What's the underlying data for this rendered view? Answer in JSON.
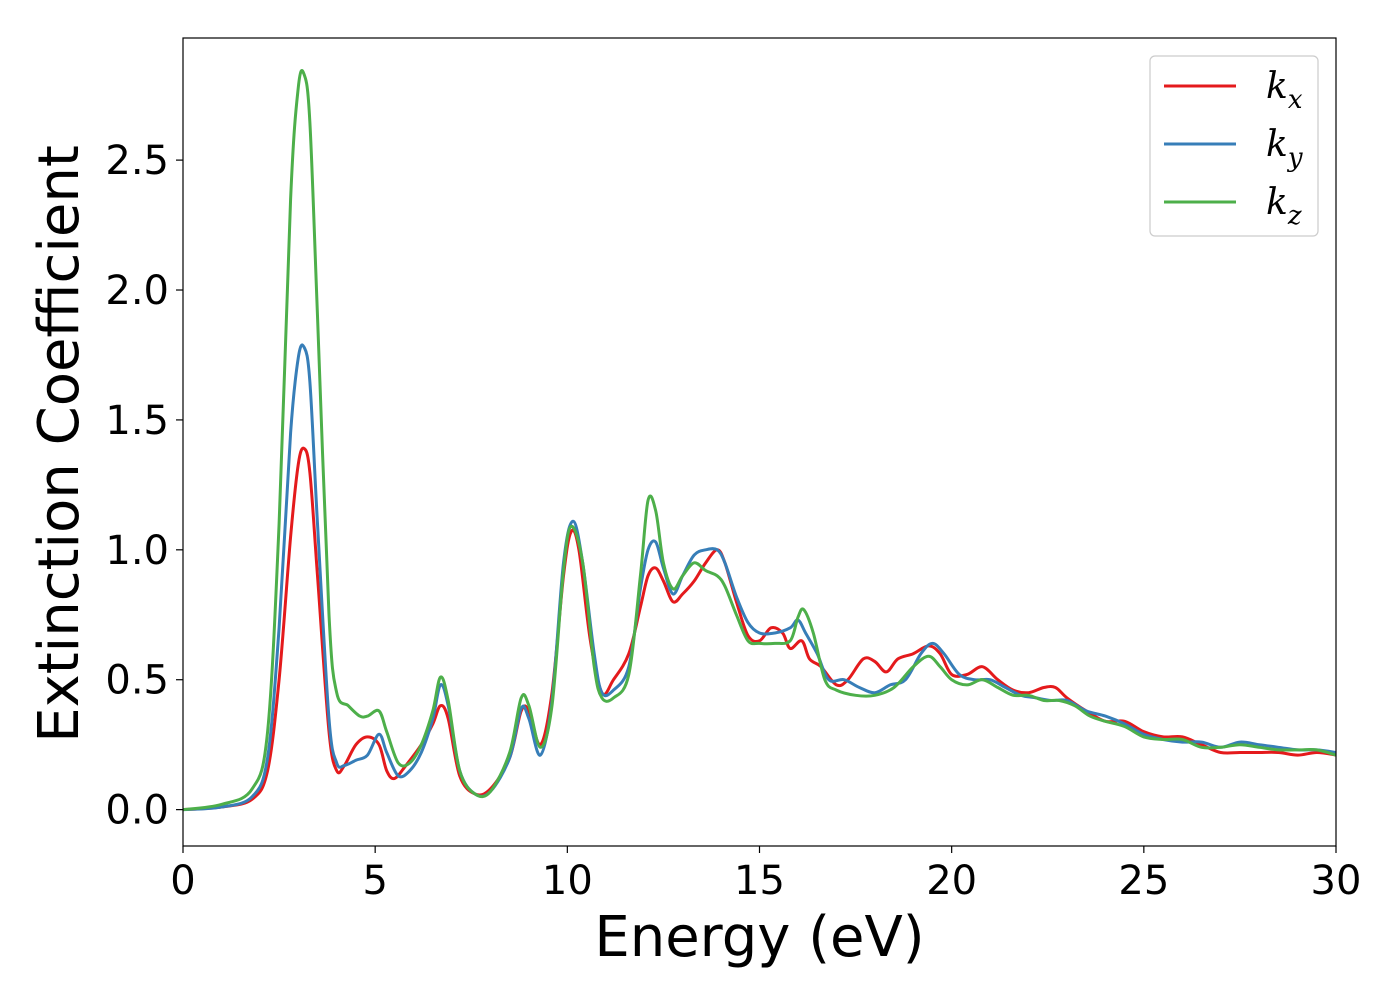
{
  "chart_data": {
    "type": "line",
    "title": "",
    "xlabel": "Energy (eV)",
    "ylabel": "Extinction Coefficient",
    "xlim": [
      0,
      30
    ],
    "ylim": [
      -0.14,
      2.97
    ],
    "xticks": [
      0,
      5,
      10,
      15,
      20,
      25,
      30
    ],
    "xtick_labels": [
      "0",
      "5",
      "10",
      "15",
      "20",
      "25",
      "30"
    ],
    "yticks": [
      0.0,
      0.5,
      1.0,
      1.5,
      2.0,
      2.5
    ],
    "ytick_labels": [
      "0.0",
      "0.5",
      "1.0",
      "1.5",
      "2.0",
      "2.5"
    ],
    "grid": false,
    "legend_position": "top-right",
    "series": [
      {
        "name": "k_x",
        "legend_base": "k",
        "legend_sub": "x",
        "color": "#e41a1c",
        "points": [
          [
            0,
            0
          ],
          [
            1,
            0.01
          ],
          [
            1.8,
            0.04
          ],
          [
            2.2,
            0.15
          ],
          [
            2.5,
            0.5
          ],
          [
            2.8,
            1.05
          ],
          [
            3.0,
            1.33
          ],
          [
            3.15,
            1.39
          ],
          [
            3.3,
            1.3
          ],
          [
            3.5,
            0.9
          ],
          [
            3.8,
            0.3
          ],
          [
            4.0,
            0.15
          ],
          [
            4.2,
            0.17
          ],
          [
            4.5,
            0.25
          ],
          [
            4.8,
            0.28
          ],
          [
            5.1,
            0.25
          ],
          [
            5.3,
            0.15
          ],
          [
            5.5,
            0.12
          ],
          [
            5.8,
            0.17
          ],
          [
            6.2,
            0.25
          ],
          [
            6.5,
            0.33
          ],
          [
            6.7,
            0.4
          ],
          [
            6.9,
            0.35
          ],
          [
            7.2,
            0.13
          ],
          [
            7.6,
            0.06
          ],
          [
            8.0,
            0.08
          ],
          [
            8.5,
            0.2
          ],
          [
            8.8,
            0.38
          ],
          [
            9.0,
            0.38
          ],
          [
            9.3,
            0.25
          ],
          [
            9.6,
            0.45
          ],
          [
            9.9,
            0.9
          ],
          [
            10.1,
            1.07
          ],
          [
            10.3,
            1.0
          ],
          [
            10.6,
            0.65
          ],
          [
            10.9,
            0.45
          ],
          [
            11.2,
            0.5
          ],
          [
            11.6,
            0.6
          ],
          [
            11.9,
            0.78
          ],
          [
            12.1,
            0.9
          ],
          [
            12.3,
            0.93
          ],
          [
            12.5,
            0.88
          ],
          [
            12.75,
            0.8
          ],
          [
            13.0,
            0.83
          ],
          [
            13.3,
            0.88
          ],
          [
            13.6,
            0.95
          ],
          [
            13.9,
            1.0
          ],
          [
            14.1,
            0.95
          ],
          [
            14.4,
            0.8
          ],
          [
            14.7,
            0.67
          ],
          [
            15.0,
            0.65
          ],
          [
            15.3,
            0.7
          ],
          [
            15.6,
            0.68
          ],
          [
            15.8,
            0.62
          ],
          [
            16.1,
            0.65
          ],
          [
            16.3,
            0.58
          ],
          [
            16.6,
            0.55
          ],
          [
            17.0,
            0.48
          ],
          [
            17.3,
            0.5
          ],
          [
            17.7,
            0.58
          ],
          [
            18.0,
            0.57
          ],
          [
            18.3,
            0.53
          ],
          [
            18.6,
            0.58
          ],
          [
            19.0,
            0.6
          ],
          [
            19.4,
            0.63
          ],
          [
            19.7,
            0.6
          ],
          [
            20.0,
            0.52
          ],
          [
            20.4,
            0.52
          ],
          [
            20.8,
            0.55
          ],
          [
            21.2,
            0.5
          ],
          [
            21.6,
            0.46
          ],
          [
            22.0,
            0.45
          ],
          [
            22.4,
            0.47
          ],
          [
            22.7,
            0.47
          ],
          [
            23.0,
            0.43
          ],
          [
            23.5,
            0.38
          ],
          [
            24.0,
            0.34
          ],
          [
            24.5,
            0.34
          ],
          [
            25.0,
            0.3
          ],
          [
            25.5,
            0.28
          ],
          [
            26.0,
            0.28
          ],
          [
            26.5,
            0.25
          ],
          [
            27.0,
            0.22
          ],
          [
            27.5,
            0.22
          ],
          [
            28.0,
            0.22
          ],
          [
            28.5,
            0.22
          ],
          [
            29.0,
            0.21
          ],
          [
            29.5,
            0.22
          ],
          [
            30.0,
            0.21
          ]
        ]
      },
      {
        "name": "k_y",
        "legend_base": "k",
        "legend_sub": "y",
        "color": "#377eb8",
        "points": [
          [
            0,
            0
          ],
          [
            1,
            0.01
          ],
          [
            1.8,
            0.05
          ],
          [
            2.2,
            0.2
          ],
          [
            2.5,
            0.7
          ],
          [
            2.8,
            1.45
          ],
          [
            3.0,
            1.74
          ],
          [
            3.15,
            1.78
          ],
          [
            3.3,
            1.65
          ],
          [
            3.5,
            1.1
          ],
          [
            3.8,
            0.35
          ],
          [
            4.0,
            0.18
          ],
          [
            4.2,
            0.17
          ],
          [
            4.5,
            0.19
          ],
          [
            4.8,
            0.21
          ],
          [
            5.1,
            0.29
          ],
          [
            5.3,
            0.22
          ],
          [
            5.6,
            0.13
          ],
          [
            5.9,
            0.15
          ],
          [
            6.2,
            0.22
          ],
          [
            6.5,
            0.35
          ],
          [
            6.7,
            0.48
          ],
          [
            6.9,
            0.4
          ],
          [
            7.2,
            0.15
          ],
          [
            7.6,
            0.06
          ],
          [
            8.0,
            0.07
          ],
          [
            8.5,
            0.2
          ],
          [
            8.8,
            0.39
          ],
          [
            9.0,
            0.35
          ],
          [
            9.3,
            0.21
          ],
          [
            9.6,
            0.42
          ],
          [
            9.9,
            0.95
          ],
          [
            10.15,
            1.11
          ],
          [
            10.4,
            0.95
          ],
          [
            10.7,
            0.6
          ],
          [
            10.9,
            0.45
          ],
          [
            11.2,
            0.46
          ],
          [
            11.6,
            0.55
          ],
          [
            11.9,
            0.85
          ],
          [
            12.1,
            1.0
          ],
          [
            12.3,
            1.03
          ],
          [
            12.5,
            0.93
          ],
          [
            12.75,
            0.83
          ],
          [
            13.0,
            0.9
          ],
          [
            13.3,
            0.98
          ],
          [
            13.6,
            1.0
          ],
          [
            13.9,
            1.0
          ],
          [
            14.1,
            0.95
          ],
          [
            14.4,
            0.82
          ],
          [
            14.7,
            0.72
          ],
          [
            15.0,
            0.68
          ],
          [
            15.4,
            0.68
          ],
          [
            15.8,
            0.7
          ],
          [
            16.0,
            0.73
          ],
          [
            16.2,
            0.68
          ],
          [
            16.5,
            0.6
          ],
          [
            16.8,
            0.5
          ],
          [
            17.2,
            0.5
          ],
          [
            17.6,
            0.47
          ],
          [
            18.0,
            0.45
          ],
          [
            18.4,
            0.48
          ],
          [
            18.8,
            0.5
          ],
          [
            19.2,
            0.6
          ],
          [
            19.5,
            0.64
          ],
          [
            19.8,
            0.6
          ],
          [
            20.2,
            0.52
          ],
          [
            20.6,
            0.5
          ],
          [
            21.0,
            0.5
          ],
          [
            21.4,
            0.47
          ],
          [
            21.8,
            0.44
          ],
          [
            22.2,
            0.43
          ],
          [
            22.6,
            0.42
          ],
          [
            23.0,
            0.42
          ],
          [
            23.5,
            0.38
          ],
          [
            24.0,
            0.36
          ],
          [
            24.5,
            0.33
          ],
          [
            25.0,
            0.29
          ],
          [
            25.5,
            0.27
          ],
          [
            26.0,
            0.26
          ],
          [
            26.5,
            0.26
          ],
          [
            27.0,
            0.24
          ],
          [
            27.5,
            0.26
          ],
          [
            28.0,
            0.25
          ],
          [
            28.5,
            0.24
          ],
          [
            29.0,
            0.23
          ],
          [
            29.5,
            0.23
          ],
          [
            30.0,
            0.22
          ]
        ]
      },
      {
        "name": "k_z",
        "legend_base": "k",
        "legend_sub": "z",
        "color": "#4daf4a",
        "points": [
          [
            0,
            0
          ],
          [
            1,
            0.02
          ],
          [
            1.8,
            0.08
          ],
          [
            2.2,
            0.3
          ],
          [
            2.5,
            1.1
          ],
          [
            2.8,
            2.35
          ],
          [
            3.0,
            2.78
          ],
          [
            3.15,
            2.83
          ],
          [
            3.3,
            2.65
          ],
          [
            3.5,
            1.9
          ],
          [
            3.8,
            0.75
          ],
          [
            4.0,
            0.45
          ],
          [
            4.3,
            0.4
          ],
          [
            4.6,
            0.36
          ],
          [
            4.8,
            0.36
          ],
          [
            5.1,
            0.38
          ],
          [
            5.3,
            0.3
          ],
          [
            5.6,
            0.18
          ],
          [
            5.9,
            0.18
          ],
          [
            6.2,
            0.25
          ],
          [
            6.5,
            0.38
          ],
          [
            6.7,
            0.51
          ],
          [
            6.9,
            0.42
          ],
          [
            7.2,
            0.15
          ],
          [
            7.6,
            0.06
          ],
          [
            8.0,
            0.07
          ],
          [
            8.5,
            0.22
          ],
          [
            8.8,
            0.43
          ],
          [
            9.0,
            0.4
          ],
          [
            9.3,
            0.24
          ],
          [
            9.6,
            0.4
          ],
          [
            9.9,
            0.92
          ],
          [
            10.1,
            1.09
          ],
          [
            10.4,
            0.95
          ],
          [
            10.7,
            0.55
          ],
          [
            10.9,
            0.43
          ],
          [
            11.2,
            0.43
          ],
          [
            11.6,
            0.52
          ],
          [
            11.9,
            0.9
          ],
          [
            12.1,
            1.19
          ],
          [
            12.3,
            1.15
          ],
          [
            12.5,
            0.95
          ],
          [
            12.75,
            0.85
          ],
          [
            13.0,
            0.9
          ],
          [
            13.3,
            0.95
          ],
          [
            13.6,
            0.92
          ],
          [
            13.9,
            0.9
          ],
          [
            14.1,
            0.86
          ],
          [
            14.4,
            0.75
          ],
          [
            14.7,
            0.65
          ],
          [
            15.0,
            0.64
          ],
          [
            15.4,
            0.64
          ],
          [
            15.8,
            0.65
          ],
          [
            16.0,
            0.74
          ],
          [
            16.15,
            0.77
          ],
          [
            16.4,
            0.68
          ],
          [
            16.7,
            0.5
          ],
          [
            17.0,
            0.46
          ],
          [
            17.5,
            0.44
          ],
          [
            18.0,
            0.44
          ],
          [
            18.5,
            0.47
          ],
          [
            19.0,
            0.55
          ],
          [
            19.4,
            0.59
          ],
          [
            19.7,
            0.55
          ],
          [
            20.0,
            0.5
          ],
          [
            20.4,
            0.48
          ],
          [
            20.8,
            0.5
          ],
          [
            21.2,
            0.47
          ],
          [
            21.6,
            0.44
          ],
          [
            22.0,
            0.44
          ],
          [
            22.4,
            0.42
          ],
          [
            22.8,
            0.42
          ],
          [
            23.2,
            0.4
          ],
          [
            23.6,
            0.36
          ],
          [
            24.0,
            0.34
          ],
          [
            24.5,
            0.32
          ],
          [
            25.0,
            0.28
          ],
          [
            25.5,
            0.27
          ],
          [
            26.0,
            0.27
          ],
          [
            26.5,
            0.24
          ],
          [
            27.0,
            0.24
          ],
          [
            27.5,
            0.25
          ],
          [
            28.0,
            0.24
          ],
          [
            28.5,
            0.23
          ],
          [
            29.0,
            0.23
          ],
          [
            29.5,
            0.23
          ],
          [
            30.0,
            0.21
          ]
        ]
      }
    ]
  }
}
